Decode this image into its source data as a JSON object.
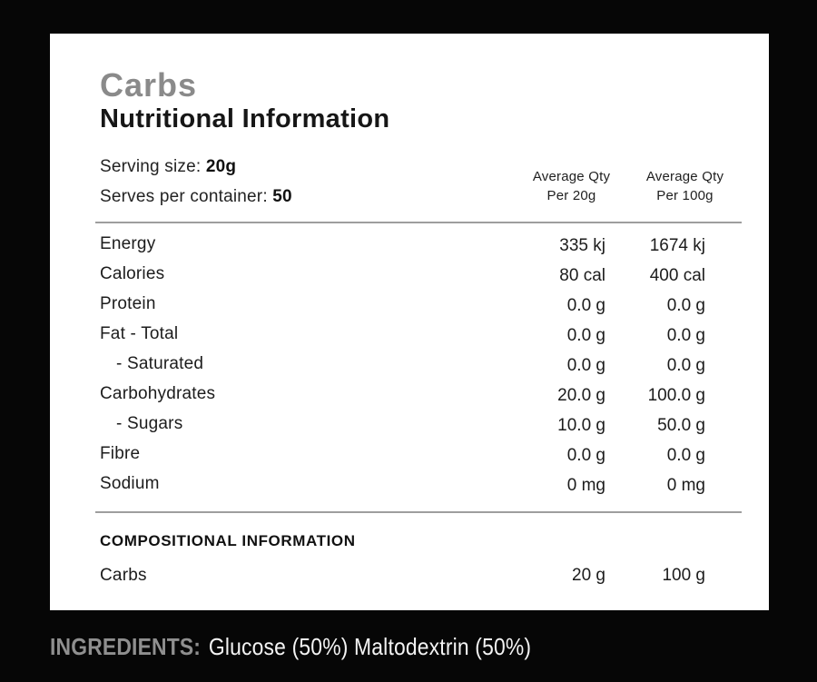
{
  "panel": {
    "product_title": "Carbs",
    "title": "Nutritional Information"
  },
  "serving": {
    "size_label": "Serving size: ",
    "size_value": "20g",
    "container_label": "Serves per container: ",
    "container_value": "50"
  },
  "columns": {
    "per_serve_line1": "Average Qty",
    "per_serve_line2": "Per 20g",
    "per_100_line1": "Average Qty",
    "per_100_line2": "Per 100g"
  },
  "table": {
    "rows": [
      {
        "label": "Energy",
        "per_serve": "335 kj",
        "per_100": "1674 kj"
      },
      {
        "label": "Calories",
        "per_serve": "80 cal",
        "per_100": "400 cal"
      },
      {
        "label": "Protein",
        "per_serve": "0.0 g",
        "per_100": "0.0 g"
      },
      {
        "label": "Fat - Total",
        "per_serve": "0.0 g",
        "per_100": "0.0 g"
      },
      {
        "label": "- Saturated",
        "per_serve": "0.0 g",
        "per_100": "0.0 g"
      },
      {
        "label": "Carbohydrates",
        "per_serve": "20.0 g",
        "per_100": "100.0 g"
      },
      {
        "label": "- Sugars",
        "per_serve": "10.0 g",
        "per_100": "50.0 g"
      },
      {
        "label": "Fibre",
        "per_serve": "0.0 g",
        "per_100": "0.0 g"
      },
      {
        "label": "Sodium",
        "per_serve": "0 mg",
        "per_100": "0 mg"
      }
    ]
  },
  "composition": {
    "heading": "COMPOSITIONAL INFORMATION",
    "row": {
      "label": "Carbs",
      "per_serve": "20 g",
      "per_100": "100 g"
    }
  },
  "ingredients": {
    "label": "INGREDIENTS:",
    "value": "Glucose (50%) Maltodextrin (50%)"
  },
  "colors": {
    "background": "#060606",
    "panel": "#ffffff",
    "title_gray": "#8a8a8a",
    "text_black": "#1a1a1a",
    "divider": "#9e9e9e",
    "ingredients_label": "#8f8f8f",
    "ingredients_value": "#f3f3f3"
  }
}
